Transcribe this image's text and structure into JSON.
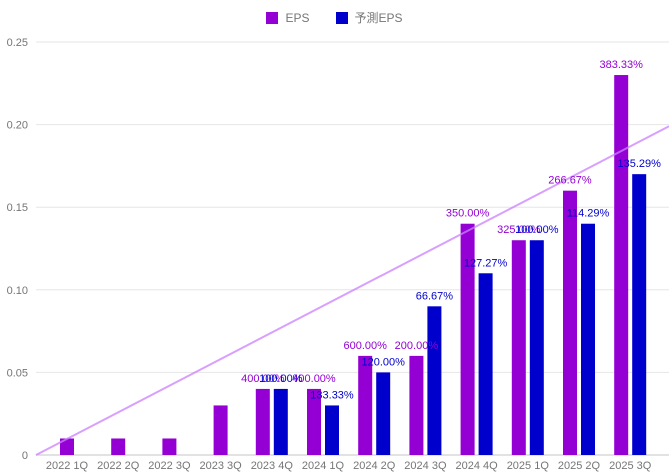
{
  "chart_data": {
    "type": "bar",
    "title": "",
    "xlabel": "",
    "ylabel": "",
    "grid": true,
    "legend_position": "top",
    "categories": [
      "2022 1Q",
      "2022 2Q",
      "2022 3Q",
      "2023 3Q",
      "2023 4Q",
      "2024 1Q",
      "2024 2Q",
      "2024 3Q",
      "2024 4Q",
      "2025 1Q",
      "2025 2Q",
      "2025 3Q"
    ],
    "series": [
      {
        "name": "EPS",
        "color": "#9400d3",
        "values": [
          0.01,
          0.01,
          0.01,
          0.03,
          0.04,
          0.04,
          0.06,
          0.06,
          0.14,
          0.13,
          0.16,
          0.23
        ],
        "labels": [
          "",
          "",
          "",
          "",
          "400.00%",
          "400.00%",
          "600.00%",
          "200.00%",
          "350.00%",
          "325.00%",
          "266.67%",
          "383.33%"
        ]
      },
      {
        "name": "予測EPS",
        "color": "#0000cd",
        "values": [
          null,
          null,
          null,
          null,
          0.04,
          0.03,
          0.05,
          0.09,
          0.11,
          0.13,
          0.14,
          0.17
        ],
        "labels": [
          "",
          "",
          "",
          "",
          "100.00%",
          "133.33%",
          "120.00%",
          "66.67%",
          "127.27%",
          "100.00%",
          "114.29%",
          "135.29%"
        ]
      }
    ],
    "trendline": {
      "color": "#cc80ff",
      "value_start": 0,
      "value_end": 0.199
    },
    "y_axis": {
      "min": 0,
      "max": 0.25,
      "tick_values": [
        0,
        0.05,
        0.1,
        0.15,
        0.2,
        0.25
      ],
      "ticks": [
        "0",
        "0.05",
        "0.10",
        "0.15",
        "0.20",
        "0.25"
      ]
    },
    "colors": {
      "gridline": "#e6e6e6",
      "axis_line": "#c4c4c4",
      "tick_text": "#757575"
    }
  }
}
